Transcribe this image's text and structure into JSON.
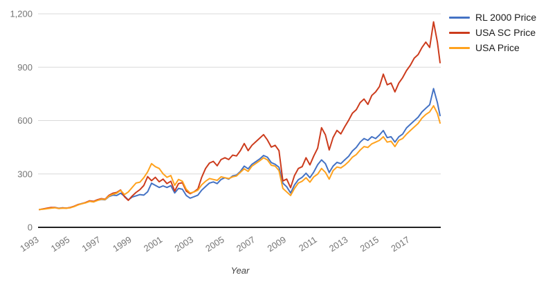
{
  "chart_data": {
    "type": "line",
    "title": "",
    "xlabel": "Year",
    "ylabel": "",
    "grid": "horizontal",
    "legend_position": "top-right",
    "xlim": [
      1993,
      2018.92
    ],
    "ylim": [
      0,
      1200
    ],
    "y_ticks": [
      0,
      300,
      600,
      900,
      1200
    ],
    "y_tick_labels": [
      "0",
      "300",
      "600",
      "900",
      "1,200"
    ],
    "x_ticks": [
      1993,
      1995,
      1997,
      1999,
      2001,
      2003,
      2005,
      2007,
      2009,
      2011,
      2013,
      2015,
      2017
    ],
    "x_tick_labels": [
      "1993",
      "1995",
      "1997",
      "1999",
      "2001",
      "2003",
      "2005",
      "2007",
      "2009",
      "2011",
      "2013",
      "2015",
      "2017"
    ],
    "axis_color": "#212121",
    "gridline_color": "#d9d9d9",
    "tick_label_color": "#757575",
    "x": [
      1993.0,
      1993.25,
      1993.5,
      1993.75,
      1994.0,
      1994.25,
      1994.5,
      1994.75,
      1995.0,
      1995.25,
      1995.5,
      1995.75,
      1996.0,
      1996.25,
      1996.5,
      1996.75,
      1997.0,
      1997.25,
      1997.5,
      1997.75,
      1998.0,
      1998.25,
      1998.5,
      1998.75,
      1999.0,
      1999.25,
      1999.5,
      1999.75,
      2000.0,
      2000.25,
      2000.5,
      2000.75,
      2001.0,
      2001.25,
      2001.5,
      2001.75,
      2002.0,
      2002.25,
      2002.5,
      2002.75,
      2003.0,
      2003.25,
      2003.5,
      2003.75,
      2004.0,
      2004.25,
      2004.5,
      2004.75,
      2005.0,
      2005.25,
      2005.5,
      2005.75,
      2006.0,
      2006.25,
      2006.5,
      2006.75,
      2007.0,
      2007.25,
      2007.5,
      2007.75,
      2008.0,
      2008.25,
      2008.5,
      2008.75,
      2009.0,
      2009.25,
      2009.5,
      2009.75,
      2010.0,
      2010.25,
      2010.5,
      2010.75,
      2011.0,
      2011.25,
      2011.5,
      2011.75,
      2012.0,
      2012.25,
      2012.5,
      2012.75,
      2013.0,
      2013.25,
      2013.5,
      2013.75,
      2014.0,
      2014.25,
      2014.5,
      2014.75,
      2015.0,
      2015.25,
      2015.5,
      2015.75,
      2016.0,
      2016.25,
      2016.5,
      2016.75,
      2017.0,
      2017.25,
      2017.5,
      2017.75,
      2018.0,
      2018.25,
      2018.5,
      2018.75,
      2018.92
    ],
    "series": [
      {
        "name": "RL 2000 Price",
        "color": "#4472C4",
        "values": [
          100,
          103,
          106,
          110,
          112,
          107,
          110,
          108,
          111,
          118,
          127,
          134,
          139,
          147,
          143,
          152,
          157,
          155,
          173,
          181,
          179,
          192,
          175,
          154,
          170,
          177,
          184,
          181,
          200,
          248,
          236,
          224,
          233,
          224,
          234,
          193,
          219,
          214,
          179,
          164,
          172,
          181,
          209,
          229,
          249,
          255,
          246,
          269,
          279,
          271,
          289,
          294,
          314,
          344,
          329,
          354,
          369,
          384,
          404,
          394,
          364,
          354,
          338,
          248,
          228,
          193,
          238,
          268,
          281,
          304,
          279,
          311,
          352,
          379,
          358,
          308,
          344,
          365,
          358,
          379,
          399,
          429,
          449,
          479,
          499,
          489,
          509,
          499,
          519,
          544,
          504,
          509,
          479,
          509,
          524,
          559,
          579,
          599,
          619,
          649,
          669,
          689,
          780,
          700,
          628
        ]
      },
      {
        "name": "USA SC Price",
        "color": "#CC3B1C",
        "values": [
          100,
          104,
          108,
          112,
          111,
          106,
          109,
          108,
          112,
          119,
          128,
          133,
          140,
          149,
          146,
          155,
          161,
          158,
          180,
          192,
          196,
          210,
          172,
          152,
          176,
          196,
          212,
          235,
          285,
          262,
          281,
          256,
          271,
          246,
          259,
          204,
          246,
          251,
          204,
          189,
          200,
          216,
          281,
          331,
          361,
          371,
          346,
          381,
          391,
          381,
          406,
          401,
          431,
          471,
          431,
          461,
          481,
          501,
          521,
          491,
          451,
          461,
          431,
          261,
          271,
          223,
          291,
          331,
          341,
          391,
          351,
          401,
          445,
          560,
          520,
          435,
          505,
          545,
          525,
          565,
          601,
          641,
          661,
          701,
          721,
          691,
          741,
          761,
          791,
          861,
          801,
          811,
          761,
          811,
          841,
          881,
          911,
          951,
          971,
          1011,
          1041,
          1011,
          1155,
          1040,
          925
        ]
      },
      {
        "name": "USA Price",
        "color": "#FFA21D",
        "values": [
          100,
          102,
          105,
          108,
          110,
          106,
          108,
          107,
          110,
          117,
          126,
          133,
          138,
          146,
          143,
          151,
          158,
          156,
          176,
          186,
          192,
          208,
          184,
          199,
          224,
          249,
          254,
          279,
          312,
          358,
          341,
          331,
          301,
          281,
          291,
          236,
          269,
          259,
          214,
          193,
          199,
          209,
          239,
          259,
          274,
          269,
          264,
          284,
          279,
          274,
          284,
          289,
          309,
          329,
          314,
          344,
          359,
          374,
          391,
          379,
          349,
          344,
          319,
          219,
          199,
          179,
          219,
          249,
          259,
          279,
          254,
          284,
          299,
          331,
          309,
          271,
          319,
          339,
          334,
          349,
          369,
          394,
          409,
          434,
          454,
          449,
          469,
          479,
          489,
          509,
          479,
          484,
          454,
          489,
          499,
          524,
          544,
          564,
          584,
          614,
          634,
          649,
          683,
          640,
          586
        ]
      }
    ]
  }
}
